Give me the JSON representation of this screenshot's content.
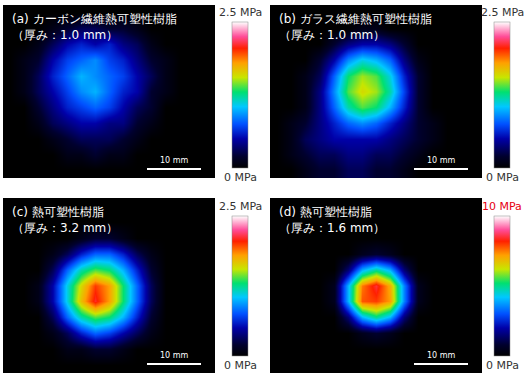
{
  "chart_data": [
    {
      "type": "heatmap",
      "title": "(a) カーボン繊維熱可塑性樹脂",
      "subtitle": "（厚み：1.0 mm）",
      "tick_labels": false,
      "colorbar_range": [
        0,
        2.5
      ],
      "colorbar_ticks": [
        {
          "value": 0,
          "label": "0 MPa"
        },
        {
          "value": 2.5,
          "label": "2.5 MPa"
        }
      ],
      "annotations": [
        {
          "text": "10 mm"
        }
      ],
      "cells": [
        [
          0,
          0,
          0,
          0,
          0,
          0,
          0,
          0,
          0,
          0,
          0,
          0,
          0,
          0,
          0
        ],
        [
          0,
          0,
          0,
          0.1,
          0.2,
          0.3,
          0.3,
          0.2,
          0.2,
          0.1,
          0,
          0,
          0,
          0,
          0
        ],
        [
          0,
          0,
          0.1,
          0.3,
          0.5,
          0.6,
          0.5,
          0.6,
          0.4,
          0.3,
          0.1,
          0,
          0,
          0,
          0
        ],
        [
          0,
          0.1,
          0.2,
          0.5,
          0.7,
          0.8,
          0.9,
          0.7,
          0.6,
          0.4,
          0.2,
          0.1,
          0,
          0,
          0
        ],
        [
          0,
          0.1,
          0.3,
          0.6,
          0.8,
          1.0,
          0.9,
          0.8,
          0.7,
          0.5,
          0.3,
          0.1,
          0,
          0,
          0
        ],
        [
          0,
          0.1,
          0.3,
          0.5,
          0.7,
          0.9,
          1.0,
          0.8,
          0.6,
          0.5,
          0.2,
          0.1,
          0,
          0,
          0
        ],
        [
          0,
          0,
          0.2,
          0.4,
          0.6,
          0.7,
          0.8,
          0.7,
          0.5,
          0.3,
          0.2,
          0,
          0,
          0,
          0
        ],
        [
          0,
          0,
          0.1,
          0.3,
          0.4,
          0.5,
          0.5,
          0.4,
          0.4,
          0.2,
          0.1,
          0,
          0,
          0,
          0
        ],
        [
          0,
          0,
          0,
          0.1,
          0.2,
          0.3,
          0.3,
          0.3,
          0.2,
          0.1,
          0,
          0,
          0,
          0,
          0
        ],
        [
          0,
          0,
          0,
          0,
          0.1,
          0.1,
          0.2,
          0.1,
          0.1,
          0,
          0,
          0,
          0,
          0,
          0
        ],
        [
          0,
          0,
          0,
          0,
          0,
          0,
          0,
          0,
          0,
          0,
          0,
          0,
          0,
          0,
          0
        ]
      ]
    },
    {
      "type": "heatmap",
      "title": "(b) ガラス繊維熱可塑性樹脂",
      "subtitle": "（厚み：1.0 mm）",
      "tick_labels": false,
      "colorbar_range": [
        0,
        2.5
      ],
      "colorbar_ticks": [
        {
          "value": 0,
          "label": "0 MPa"
        },
        {
          "value": 2.5,
          "label": "2.5 MPa"
        }
      ],
      "annotations": [
        {
          "text": "10 mm"
        }
      ],
      "cells": [
        [
          0,
          0,
          0,
          0,
          0,
          0,
          0,
          0,
          0,
          0,
          0,
          0,
          0,
          0,
          0
        ],
        [
          0,
          0,
          0,
          0,
          0,
          0,
          0.1,
          0.1,
          0,
          0,
          0,
          0,
          0,
          0,
          0
        ],
        [
          0,
          0,
          0,
          0,
          0.2,
          0.4,
          0.5,
          0.5,
          0.4,
          0.2,
          0,
          0,
          0,
          0,
          0
        ],
        [
          0,
          0,
          0,
          0.2,
          0.5,
          0.9,
          1.1,
          1.0,
          0.8,
          0.4,
          0.1,
          0,
          0,
          0,
          0
        ],
        [
          0,
          0,
          0.1,
          0.3,
          0.8,
          1.3,
          1.5,
          1.4,
          1.1,
          0.6,
          0.2,
          0,
          0,
          0,
          0
        ],
        [
          0,
          0,
          0.1,
          0.4,
          0.9,
          1.4,
          1.6,
          1.5,
          1.2,
          0.7,
          0.2,
          0,
          0,
          0,
          0
        ],
        [
          0,
          0,
          0.1,
          0.4,
          0.8,
          1.2,
          1.4,
          1.3,
          1.0,
          0.6,
          0.2,
          0,
          0,
          0,
          0
        ],
        [
          0,
          0.1,
          0.2,
          0.4,
          0.6,
          0.8,
          0.9,
          0.8,
          0.6,
          0.4,
          0.2,
          0.1,
          0,
          0,
          0
        ],
        [
          0,
          0.1,
          0.3,
          0.4,
          0.5,
          0.5,
          0.5,
          0.5,
          0.4,
          0.3,
          0.2,
          0.1,
          0,
          0,
          0
        ],
        [
          0,
          0.1,
          0.2,
          0.3,
          0.3,
          0.4,
          0.4,
          0.3,
          0.3,
          0.2,
          0.1,
          0,
          0,
          0,
          0
        ],
        [
          0,
          0,
          0.1,
          0.2,
          0.2,
          0.3,
          0.3,
          0.2,
          0.2,
          0.1,
          0,
          0,
          0,
          0,
          0
        ]
      ]
    },
    {
      "type": "heatmap",
      "title": "(c) 熱可塑性樹脂",
      "subtitle": "（厚み：3.2 mm）",
      "tick_labels": false,
      "colorbar_range": [
        0,
        2.5
      ],
      "colorbar_ticks": [
        {
          "value": 0,
          "label": "0 MPa"
        },
        {
          "value": 2.5,
          "label": "2.5 MPa"
        }
      ],
      "annotations": [
        {
          "text": "10 mm"
        }
      ],
      "cells": [
        [
          0,
          0,
          0,
          0,
          0,
          0,
          0,
          0,
          0,
          0,
          0,
          0,
          0,
          0,
          0
        ],
        [
          0,
          0,
          0,
          0,
          0,
          0,
          0,
          0,
          0,
          0,
          0,
          0,
          0,
          0,
          0
        ],
        [
          0,
          0,
          0,
          0,
          0,
          0.1,
          0.2,
          0.2,
          0.1,
          0,
          0,
          0,
          0,
          0,
          0
        ],
        [
          0,
          0,
          0,
          0.1,
          0.3,
          0.6,
          0.8,
          0.8,
          0.6,
          0.3,
          0.1,
          0,
          0,
          0,
          0
        ],
        [
          0,
          0,
          0,
          0.3,
          0.8,
          1.2,
          1.4,
          1.3,
          1.0,
          0.6,
          0.2,
          0,
          0,
          0,
          0
        ],
        [
          0,
          0,
          0.1,
          0.5,
          1.1,
          1.6,
          2.0,
          1.8,
          1.3,
          0.8,
          0.3,
          0,
          0,
          0,
          0
        ],
        [
          0,
          0,
          0.1,
          0.5,
          1.1,
          1.7,
          2.1,
          1.8,
          1.3,
          0.8,
          0.3,
          0,
          0,
          0,
          0
        ],
        [
          0,
          0,
          0,
          0.3,
          0.8,
          1.2,
          1.4,
          1.3,
          1.0,
          0.6,
          0.2,
          0,
          0,
          0,
          0
        ],
        [
          0,
          0,
          0,
          0.1,
          0.3,
          0.6,
          0.8,
          0.7,
          0.5,
          0.3,
          0.1,
          0,
          0,
          0,
          0
        ],
        [
          0,
          0,
          0,
          0,
          0.1,
          0.1,
          0.2,
          0.2,
          0.1,
          0,
          0,
          0,
          0,
          0,
          0
        ],
        [
          0,
          0,
          0,
          0,
          0,
          0,
          0,
          0,
          0,
          0,
          0,
          0,
          0,
          0,
          0
        ]
      ]
    },
    {
      "type": "heatmap",
      "title": "(d) 熱可塑性樹脂",
      "subtitle": "（厚み：1.6 mm）",
      "tick_labels": false,
      "colorbar_range": [
        0,
        10
      ],
      "colorbar_ticks": [
        {
          "value": 0,
          "label": "0 MPa"
        },
        {
          "value": 10,
          "label": "10 MPa"
        }
      ],
      "annotations": [
        {
          "text": "10 mm"
        }
      ],
      "cells": [
        [
          0,
          0,
          0,
          0,
          0,
          0,
          0,
          0,
          0,
          0,
          0,
          0,
          0,
          0,
          0
        ],
        [
          0,
          0,
          0,
          0,
          0,
          0,
          0,
          0,
          0,
          0,
          0,
          0,
          0,
          0,
          0
        ],
        [
          0,
          0,
          0,
          0,
          0,
          0,
          0,
          0,
          0,
          0,
          0,
          0,
          0,
          0,
          0
        ],
        [
          0,
          0,
          0,
          0,
          0,
          0,
          0.5,
          0.8,
          0.5,
          0,
          0,
          0,
          0,
          0,
          0
        ],
        [
          0,
          0,
          0,
          0,
          0,
          1.5,
          4.0,
          5.0,
          4.0,
          1.5,
          0,
          0,
          0,
          0,
          0
        ],
        [
          0,
          0,
          0,
          0,
          0.5,
          4.0,
          7.5,
          8.5,
          7.0,
          3.5,
          0.5,
          0,
          0,
          0,
          0
        ],
        [
          0,
          0,
          0,
          0,
          0.5,
          4.0,
          7.8,
          8.0,
          7.2,
          3.5,
          0.5,
          0,
          0,
          0,
          0
        ],
        [
          0,
          0,
          0,
          0,
          0,
          1.5,
          4.0,
          5.0,
          4.0,
          1.5,
          0,
          0,
          0,
          0,
          0
        ],
        [
          0,
          0,
          0,
          0,
          0,
          0,
          0.5,
          0.8,
          0.5,
          0,
          0,
          0,
          0,
          0,
          0
        ],
        [
          0,
          0,
          0,
          0,
          0,
          0,
          0,
          0,
          0,
          0,
          0,
          0,
          0,
          0,
          0
        ],
        [
          0,
          0,
          0,
          0,
          0,
          0,
          0,
          0,
          0,
          0,
          0,
          0,
          0,
          0,
          0
        ]
      ]
    }
  ]
}
